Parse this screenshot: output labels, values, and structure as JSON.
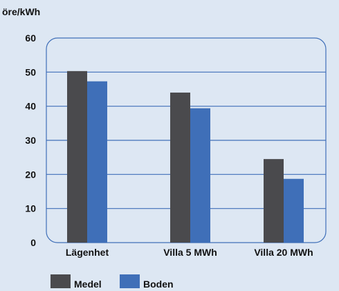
{
  "chart_data": {
    "type": "bar",
    "ylabel": "öre/kWh",
    "ylim": [
      0,
      60
    ],
    "yticks": [
      0,
      10,
      20,
      30,
      40,
      50,
      60
    ],
    "categories": [
      "Lägenhet",
      "Villa 5 MWh",
      "Villa 20 MWh"
    ],
    "series": [
      {
        "name": "Medel",
        "values": [
          50.3,
          44.0,
          24.5
        ],
        "color": "#4a4a4d"
      },
      {
        "name": "Boden",
        "values": [
          47.3,
          39.4,
          18.7
        ],
        "color": "#3f6fb8"
      }
    ],
    "grid": true,
    "legend": "bottom-left"
  },
  "colors": {
    "background": "#dde7f3",
    "frame": "#3f6fb8",
    "gridline": "#3f6fb8"
  }
}
